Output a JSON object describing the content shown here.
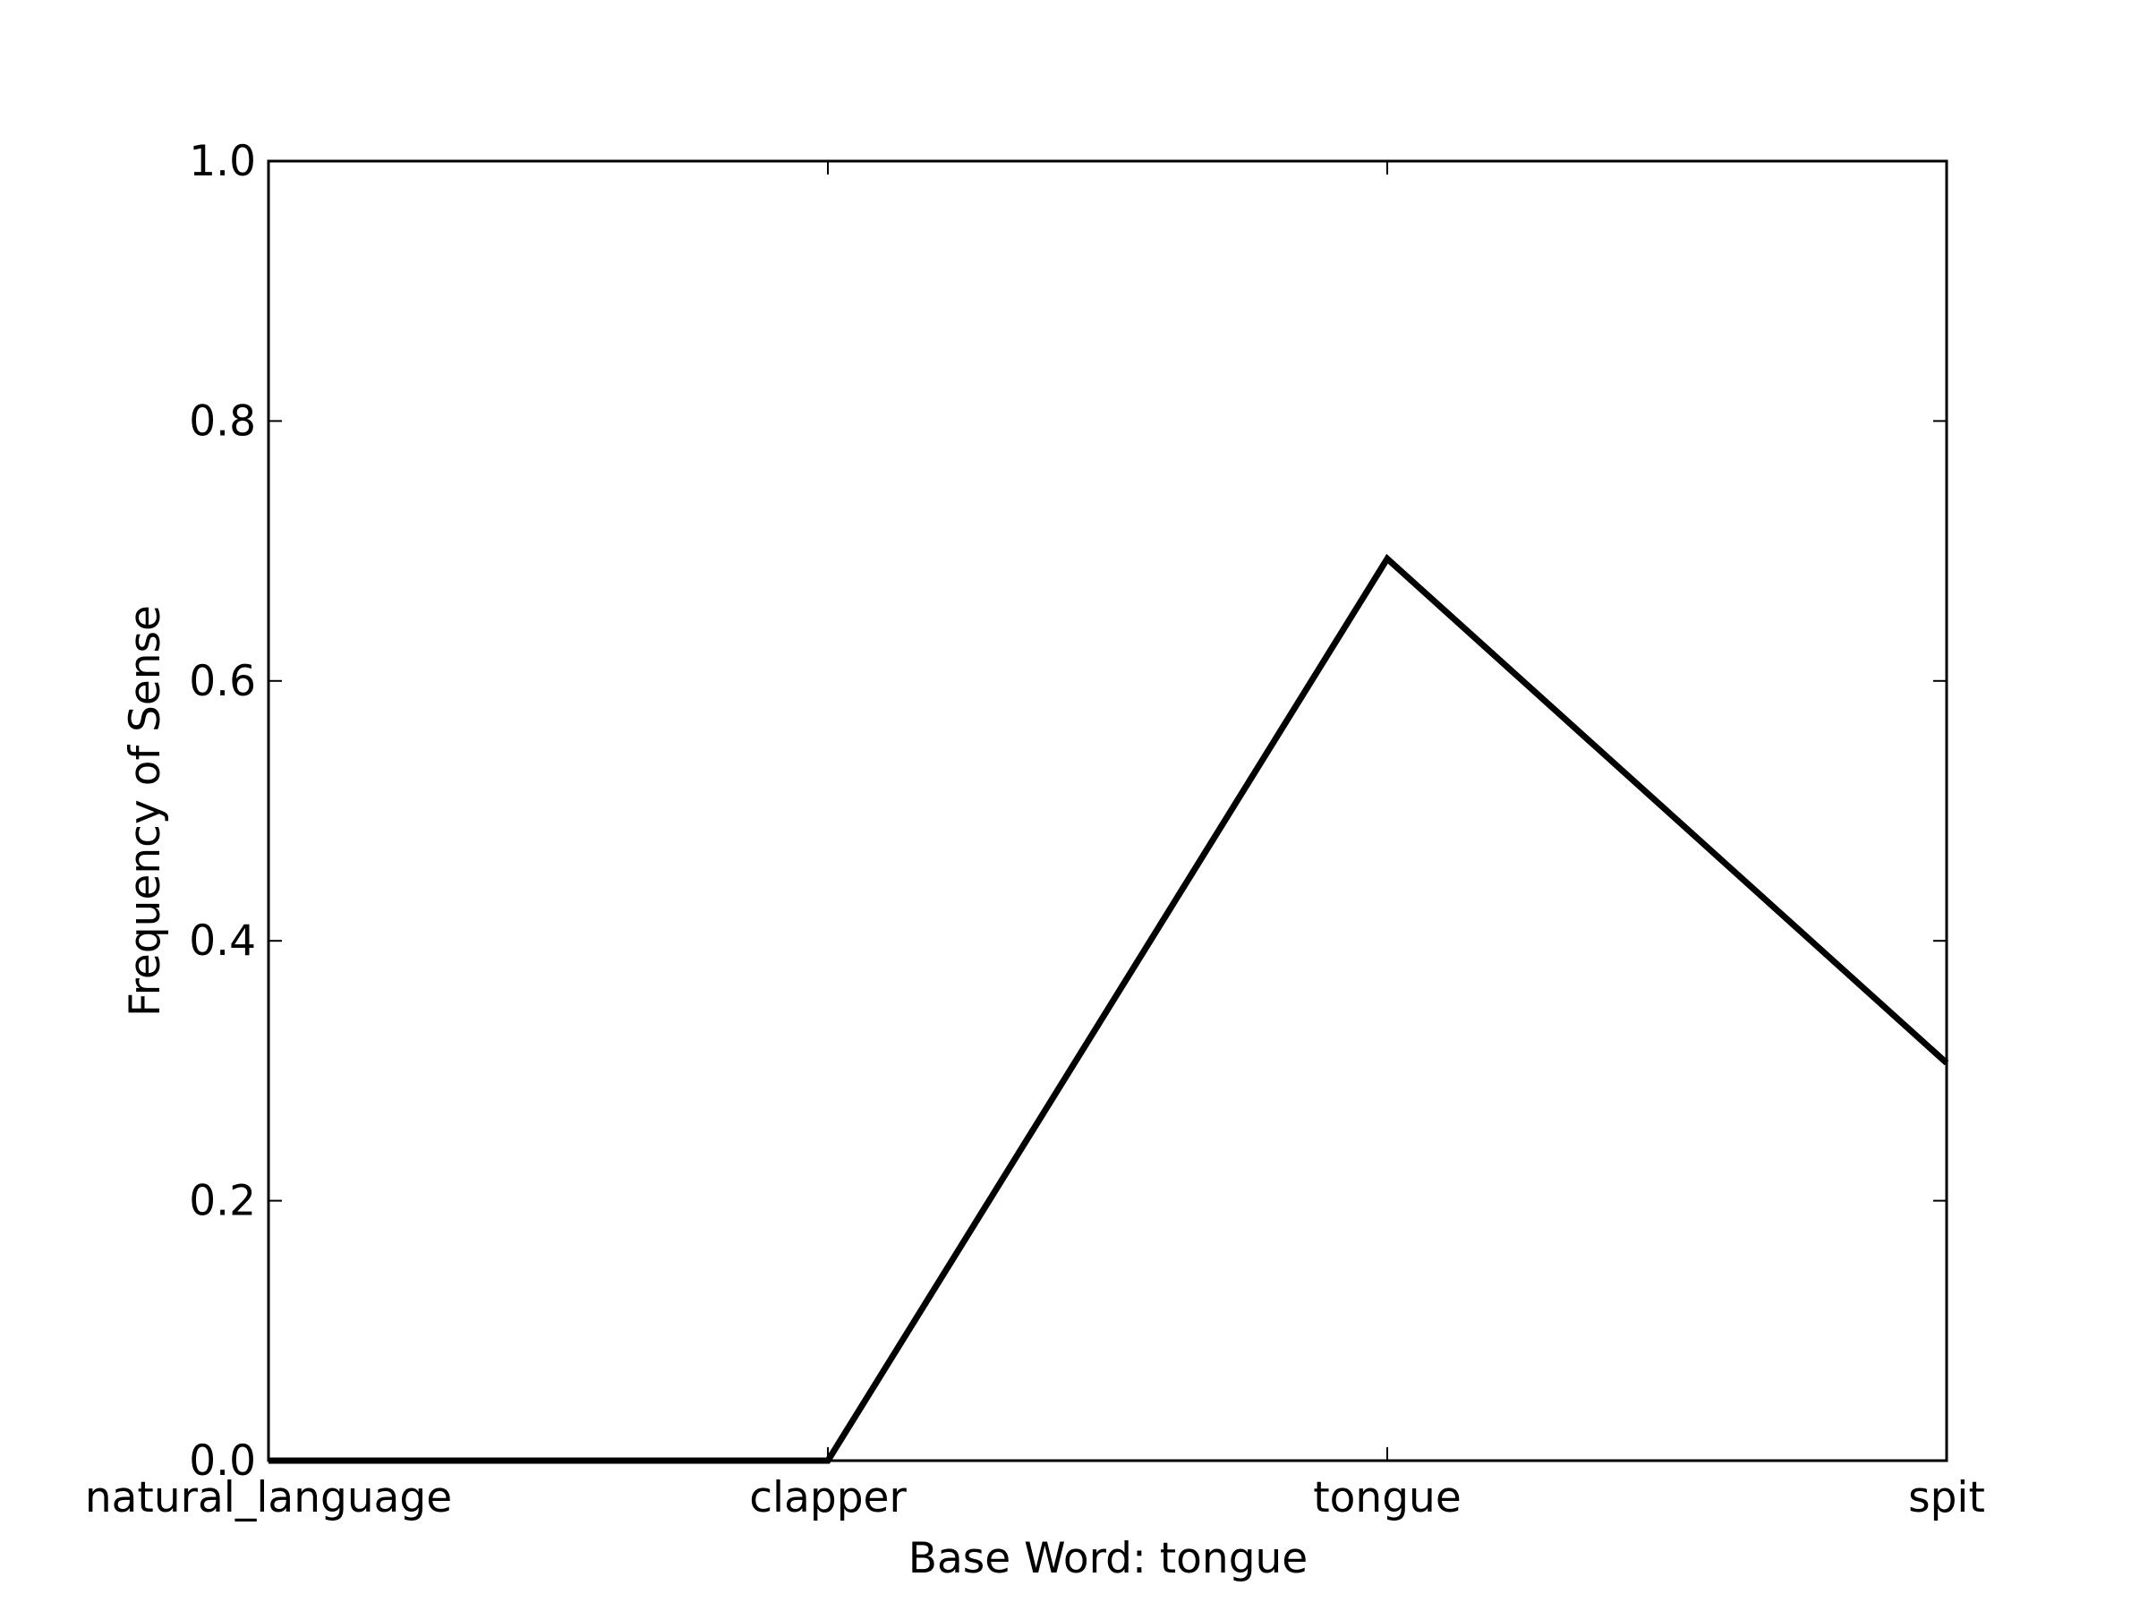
{
  "chart_data": {
    "type": "line",
    "categories": [
      "natural_language",
      "clapper",
      "tongue",
      "spit"
    ],
    "series": [
      {
        "values": [
          0.0,
          0.0,
          0.694,
          0.306
        ]
      }
    ],
    "title": "",
    "xlabel": "Base Word: tongue",
    "ylabel": "Frequency of Sense",
    "ylim": [
      0.0,
      1.0
    ],
    "yticks": [
      "0.0",
      "0.2",
      "0.4",
      "0.6",
      "0.8",
      "1.0"
    ],
    "grid": false,
    "line_color": "#000000"
  }
}
